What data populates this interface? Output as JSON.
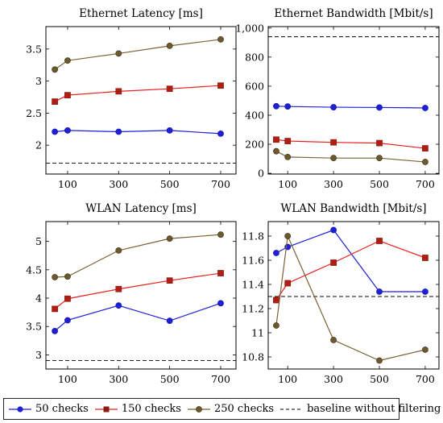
{
  "chart_data": [
    {
      "type": "line",
      "title": "Ethernet Latency [ms]",
      "x": [
        50,
        100,
        300,
        500,
        700
      ],
      "xticks": [
        "100",
        "300",
        "500",
        "700"
      ],
      "yticks": [
        "2",
        "2.5",
        "3",
        "3.5"
      ],
      "ylim": [
        1.55,
        3.85
      ],
      "baseline": 1.72,
      "series": [
        {
          "name": "50 checks",
          "values": [
            2.21,
            2.23,
            2.21,
            2.23,
            2.18
          ]
        },
        {
          "name": "150 checks",
          "values": [
            2.68,
            2.78,
            2.84,
            2.88,
            2.93
          ]
        },
        {
          "name": "250 checks",
          "values": [
            3.18,
            3.32,
            3.43,
            3.55,
            3.65
          ]
        }
      ]
    },
    {
      "type": "line",
      "title": "Ethernet Bandwidth [Mbit/s]",
      "x": [
        50,
        100,
        300,
        500,
        700
      ],
      "xticks": [
        "100",
        "300",
        "500",
        "700"
      ],
      "yticks": [
        "0",
        "200",
        "400",
        "600",
        "800",
        "1,000"
      ],
      "ylim": [
        -5,
        1010
      ],
      "baseline": 940,
      "series": [
        {
          "name": "50 checks",
          "values": [
            462,
            460,
            455,
            453,
            450
          ]
        },
        {
          "name": "150 checks",
          "values": [
            232,
            222,
            213,
            208,
            172
          ]
        },
        {
          "name": "250 checks",
          "values": [
            152,
            112,
            105,
            105,
            78
          ]
        }
      ]
    },
    {
      "type": "line",
      "title": "WLAN Latency [ms]",
      "x": [
        50,
        100,
        300,
        500,
        700
      ],
      "xticks": [
        "100",
        "300",
        "500",
        "700"
      ],
      "yticks": [
        "3",
        "3.5",
        "4",
        "4.5",
        "5"
      ],
      "ylim": [
        2.75,
        5.35
      ],
      "baseline": 2.9,
      "series": [
        {
          "name": "50 checks",
          "values": [
            3.42,
            3.61,
            3.87,
            3.6,
            3.91
          ]
        },
        {
          "name": "150 checks",
          "values": [
            3.81,
            3.99,
            4.16,
            4.31,
            4.44
          ]
        },
        {
          "name": "250 checks",
          "values": [
            4.37,
            4.38,
            4.84,
            5.05,
            5.12
          ]
        }
      ]
    },
    {
      "type": "line",
      "title": "WLAN Bandwidth [Mbit/s]",
      "x": [
        50,
        100,
        300,
        500,
        700
      ],
      "xticks": [
        "100",
        "300",
        "500",
        "700"
      ],
      "yticks": [
        "10.8",
        "11",
        "11.2",
        "11.4",
        "11.6",
        "11.8"
      ],
      "ylim": [
        10.7,
        11.92
      ],
      "baseline": 11.3,
      "series": [
        {
          "name": "50 checks",
          "values": [
            11.66,
            11.71,
            11.85,
            11.34,
            11.34
          ]
        },
        {
          "name": "150 checks",
          "values": [
            11.27,
            11.41,
            11.58,
            11.76,
            11.62
          ]
        },
        {
          "name": "250 checks",
          "values": [
            11.06,
            11.8,
            10.94,
            10.77,
            10.86
          ]
        }
      ]
    }
  ],
  "xlim": [
    15,
    760
  ],
  "legend": {
    "placement": "bottom",
    "items": [
      "50 checks",
      "150 checks",
      "250 checks",
      "baseline without filtering"
    ]
  },
  "colors": {
    "50 checks": "#1f1fd6",
    "150 checks": "#e8201c",
    "250 checks": "#7a6233",
    "baseline": "#000000"
  },
  "markers": {
    "50 checks": "circle",
    "150 checks": "square",
    "250 checks": "circle"
  }
}
